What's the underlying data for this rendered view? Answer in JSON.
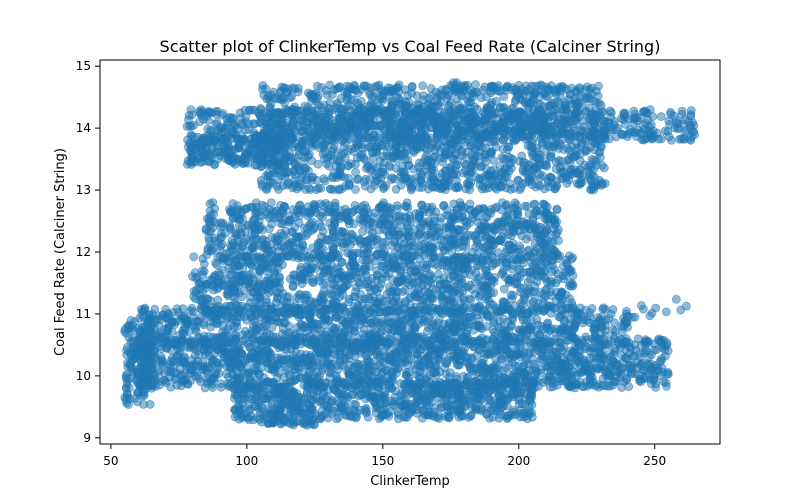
{
  "chart_data": {
    "type": "scatter",
    "title": "Scatter plot of ClinkerTemp vs Coal Feed Rate (Calciner String)",
    "xlabel": "ClinkerTemp",
    "ylabel": "Coal Feed Rate (Calciner String)",
    "xlim": [
      46,
      274
    ],
    "ylim": [
      8.9,
      15.1
    ],
    "xticks": [
      50,
      100,
      150,
      200,
      250
    ],
    "yticks": [
      9,
      10,
      11,
      12,
      13,
      14,
      15
    ],
    "grid": false,
    "legend": "none",
    "point_color": "#1f77b4",
    "point_alpha": 0.5,
    "density_clusters": [
      {
        "x_range": [
          78,
          265
        ],
        "y_range": [
          13.8,
          14.3
        ],
        "count": 700
      },
      {
        "x_range": [
          78,
          115
        ],
        "y_range": [
          13.4,
          13.85
        ],
        "count": 220
      },
      {
        "x_range": [
          105,
          232
        ],
        "y_range": [
          13.0,
          14.7
        ],
        "count": 1600
      },
      {
        "x_range": [
          85,
          215
        ],
        "y_range": [
          11.9,
          12.8
        ],
        "count": 900
      },
      {
        "x_range": [
          80,
          220
        ],
        "y_range": [
          11.0,
          11.95
        ],
        "count": 1000
      },
      {
        "x_range": [
          60,
          240
        ],
        "y_range": [
          10.5,
          11.1
        ],
        "count": 900
      },
      {
        "x_range": [
          60,
          255
        ],
        "y_range": [
          9.8,
          10.6
        ],
        "count": 1500
      },
      {
        "x_range": [
          95,
          205
        ],
        "y_range": [
          9.3,
          9.9
        ],
        "count": 700
      },
      {
        "x_range": [
          55,
          65
        ],
        "y_range": [
          9.5,
          10.9
        ],
        "count": 140
      },
      {
        "x_range": [
          98,
          125
        ],
        "y_range": [
          9.2,
          9.3
        ],
        "count": 40
      },
      {
        "x_range": [
          240,
          262
        ],
        "y_range": [
          10.9,
          11.25
        ],
        "count": 12
      },
      {
        "x_range": [
          175,
          205
        ],
        "y_range": [
          14.5,
          14.75
        ],
        "count": 25
      }
    ]
  }
}
